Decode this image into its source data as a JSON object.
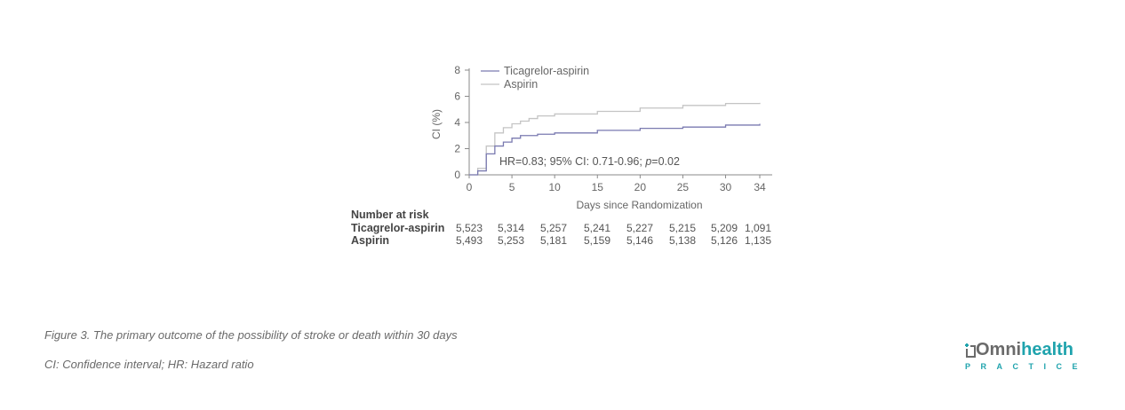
{
  "chart_data": {
    "type": "line",
    "title": "",
    "xlabel": "Days since Randomization",
    "ylabel": "CI (%)",
    "xlim": [
      0,
      34
    ],
    "ylim": [
      0,
      8
    ],
    "x_ticks": [
      0,
      5,
      10,
      15,
      20,
      25,
      30,
      34
    ],
    "y_ticks": [
      0,
      2,
      4,
      6,
      8
    ],
    "legend_position": "top-left",
    "series": [
      {
        "name": "Ticagrelor-aspirin",
        "color": "#7a7ab0",
        "x": [
          0,
          1,
          2,
          3,
          4,
          5,
          6,
          8,
          10,
          15,
          20,
          25,
          30,
          34
        ],
        "y": [
          0,
          0.3,
          1.6,
          2.2,
          2.5,
          2.8,
          3.0,
          3.1,
          3.2,
          3.4,
          3.55,
          3.65,
          3.8,
          3.9
        ]
      },
      {
        "name": "Aspirin",
        "color": "#c4c4c4",
        "x": [
          0,
          1,
          2,
          3,
          4,
          5,
          6,
          7,
          8,
          10,
          15,
          20,
          25,
          30,
          34
        ],
        "y": [
          0,
          0.5,
          2.2,
          3.2,
          3.6,
          3.9,
          4.1,
          4.3,
          4.5,
          4.65,
          4.85,
          5.1,
          5.3,
          5.45,
          5.5
        ]
      }
    ],
    "annotation": {
      "prefix": "HR=0.83; 95% CI: 0.71-0.96; ",
      "p_label": "p",
      "suffix": "=0.02"
    },
    "number_at_risk": {
      "header": "Number at risk",
      "rows": [
        {
          "label": "Ticagrelor-aspirin",
          "values": [
            "5,523",
            "5,314",
            "5,257",
            "5,241",
            "5,227",
            "5,215",
            "5,209",
            "1,091"
          ]
        },
        {
          "label": "Aspirin",
          "values": [
            "5,493",
            "5,253",
            "5,181",
            "5,159",
            "5,146",
            "5,138",
            "5,126",
            "1,135"
          ]
        }
      ]
    }
  },
  "captions": {
    "figure": "Figure 3. The primary outcome of the possibility of stroke or death within 30 days",
    "abbreviations": "CI: Confidence interval; HR: Hazard ratio"
  },
  "logo": {
    "brand_part1": "Omni",
    "brand_part2": "health",
    "tagline": "PRACTICE",
    "accent_color": "#1fa3ad"
  }
}
